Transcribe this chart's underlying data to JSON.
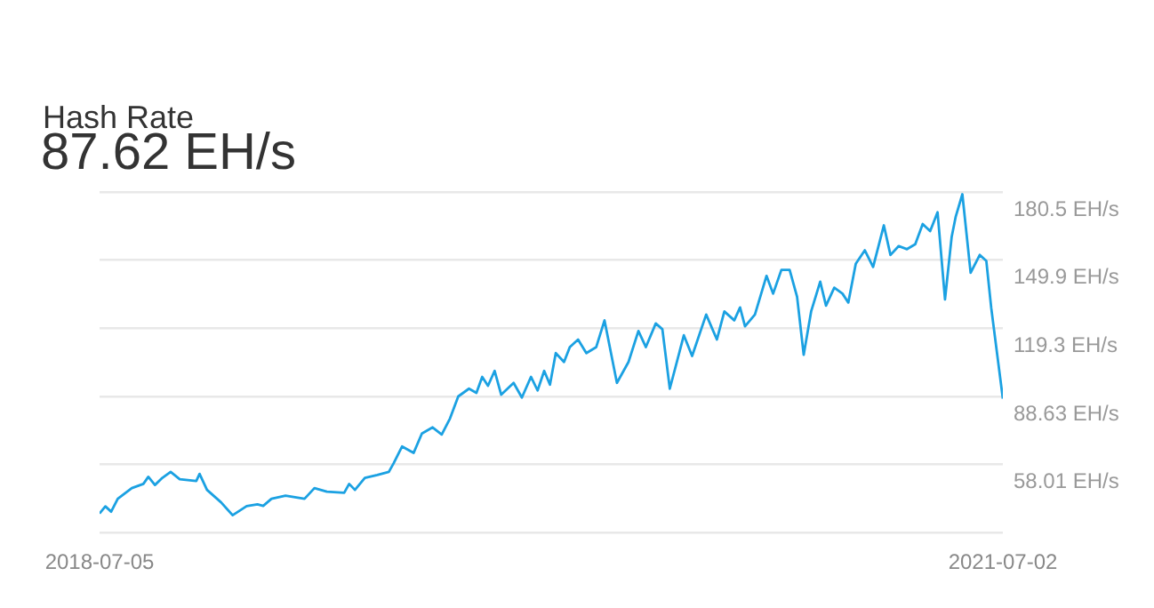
{
  "chart_data": {
    "type": "line",
    "title": "Hash Rate",
    "subtitle": "87.62 EH/s",
    "color": "#1ba1e2",
    "marker": "none",
    "grid": "y",
    "x": [
      "2018-07-05",
      "2018-07-12",
      "2018-07-19",
      "2018-07-27",
      "2018-08-13",
      "2018-08-27",
      "2018-09-02",
      "2018-09-10",
      "2018-09-19",
      "2018-09-29",
      "2018-10-10",
      "2018-10-30",
      "2018-11-03",
      "2018-11-12",
      "2018-11-29",
      "2018-12-13",
      "2018-12-30",
      "2019-01-12",
      "2019-01-19",
      "2019-01-29",
      "2019-02-15",
      "2019-03-10",
      "2019-03-22",
      "2019-04-06",
      "2019-04-27",
      "2019-05-03",
      "2019-05-10",
      "2019-05-22",
      "2019-06-06",
      "2019-06-20",
      "2019-06-26",
      "2019-07-06",
      "2019-07-20",
      "2019-07-30",
      "2019-08-12",
      "2019-08-23",
      "2019-09-02",
      "2019-09-12",
      "2019-09-25",
      "2019-10-04",
      "2019-10-11",
      "2019-10-18",
      "2019-10-26",
      "2019-11-03",
      "2019-11-18",
      "2019-11-28",
      "2019-12-09",
      "2019-12-17",
      "2019-12-25",
      "2020-01-01",
      "2020-01-08",
      "2020-01-18",
      "2020-01-25",
      "2020-02-04",
      "2020-02-14",
      "2020-02-26",
      "2020-03-07",
      "2020-03-22",
      "2020-04-05",
      "2020-04-17",
      "2020-04-26",
      "2020-05-08",
      "2020-05-16",
      "2020-05-25",
      "2020-06-11",
      "2020-06-21",
      "2020-07-08",
      "2020-07-21",
      "2020-07-30",
      "2020-08-11",
      "2020-08-18",
      "2020-08-24",
      "2020-09-05",
      "2020-09-19",
      "2020-09-27",
      "2020-10-07",
      "2020-10-17",
      "2020-10-26",
      "2020-11-03",
      "2020-11-12",
      "2020-11-23",
      "2020-11-30",
      "2020-12-10",
      "2020-12-20",
      "2020-12-27",
      "2021-01-05",
      "2021-01-16",
      "2021-01-26",
      "2021-02-08",
      "2021-02-16",
      "2021-02-26",
      "2021-03-08",
      "2021-03-18",
      "2021-03-27",
      "2021-04-05",
      "2021-04-14",
      "2021-04-23",
      "2021-05-01",
      "2021-05-06",
      "2021-05-14",
      "2021-05-24",
      "2021-06-04",
      "2021-06-12",
      "2021-06-18",
      "2021-07-02"
    ],
    "values": [
      36.0,
      39.2,
      36.8,
      42.6,
      47.4,
      49.3,
      52.5,
      48.8,
      52.0,
      54.7,
      51.4,
      50.6,
      53.8,
      46.6,
      41.0,
      35.2,
      39.3,
      40.1,
      39.4,
      42.6,
      44.0,
      42.6,
      47.4,
      45.8,
      45.3,
      49.3,
      46.6,
      52.0,
      53.3,
      54.7,
      58.7,
      66.1,
      63.2,
      71.9,
      74.7,
      71.5,
      78.7,
      88.6,
      92.1,
      90.2,
      97.4,
      93.4,
      100.1,
      89.4,
      94.7,
      88.1,
      97.4,
      91.3,
      100.1,
      93.9,
      108.1,
      104.1,
      110.8,
      114.2,
      108.1,
      110.8,
      122.8,
      94.7,
      104.1,
      118.0,
      110.8,
      121.4,
      118.8,
      92.1,
      116.1,
      106.8,
      125.4,
      114.2,
      126.8,
      122.8,
      128.6,
      120.1,
      125.4,
      142.8,
      134.8,
      145.5,
      145.5,
      133.4,
      107.3,
      126.8,
      140.2,
      129.4,
      137.5,
      134.8,
      130.8,
      148.2,
      154.3,
      146.8,
      165.5,
      152.2,
      156.2,
      154.8,
      157.0,
      166.1,
      162.9,
      171.4,
      132.2,
      160.2,
      169.5,
      179.5,
      144.2,
      152.2,
      149.5,
      128.2,
      87.62
    ],
    "xlim": [
      "2018-07-05",
      "2021-07-02"
    ],
    "xticks": [
      {
        "value": "2018-07-05",
        "label": "2018-07-05"
      },
      {
        "value": "2021-07-02",
        "label": "2021-07-02"
      }
    ],
    "ylim": [
      27.39,
      180.5
    ],
    "yticks": [
      {
        "value": 27.39,
        "label": null
      },
      {
        "value": 58.01,
        "label": "58.01 EH/s"
      },
      {
        "value": 88.63,
        "label": "88.63 EH/s"
      },
      {
        "value": 119.3,
        "label": "119.3 EH/s"
      },
      {
        "value": 149.9,
        "label": "149.9 EH/s"
      },
      {
        "value": 180.5,
        "label": "180.5 EH/s"
      }
    ]
  }
}
